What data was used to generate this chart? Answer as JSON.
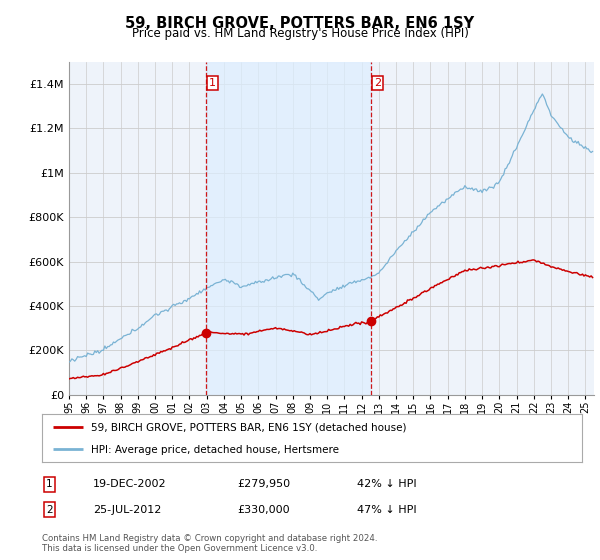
{
  "title": "59, BIRCH GROVE, POTTERS BAR, EN6 1SY",
  "subtitle": "Price paid vs. HM Land Registry's House Price Index (HPI)",
  "legend_line1": "59, BIRCH GROVE, POTTERS BAR, EN6 1SY (detached house)",
  "legend_line2": "HPI: Average price, detached house, Hertsmere",
  "table_rows": [
    {
      "num": "1",
      "date": "19-DEC-2002",
      "price": "£279,950",
      "pct": "42% ↓ HPI"
    },
    {
      "num": "2",
      "date": "25-JUL-2012",
      "price": "£330,000",
      "pct": "47% ↓ HPI"
    }
  ],
  "footnote": "Contains HM Land Registry data © Crown copyright and database right 2024.\nThis data is licensed under the Open Government Licence v3.0.",
  "sale1_year": 2002.96,
  "sale1_price": 279950,
  "sale2_year": 2012.56,
  "sale2_price": 330000,
  "vline1_year": 2002.96,
  "vline2_year": 2012.56,
  "hpi_color": "#7ab3d4",
  "price_color": "#cc0000",
  "vline_color": "#cc0000",
  "shade_color": "#ddeeff",
  "background_color": "#eef3fa",
  "grid_color": "#cccccc",
  "ylim_max": 1500000,
  "xlim_start": 1995.0,
  "xlim_end": 2025.5
}
